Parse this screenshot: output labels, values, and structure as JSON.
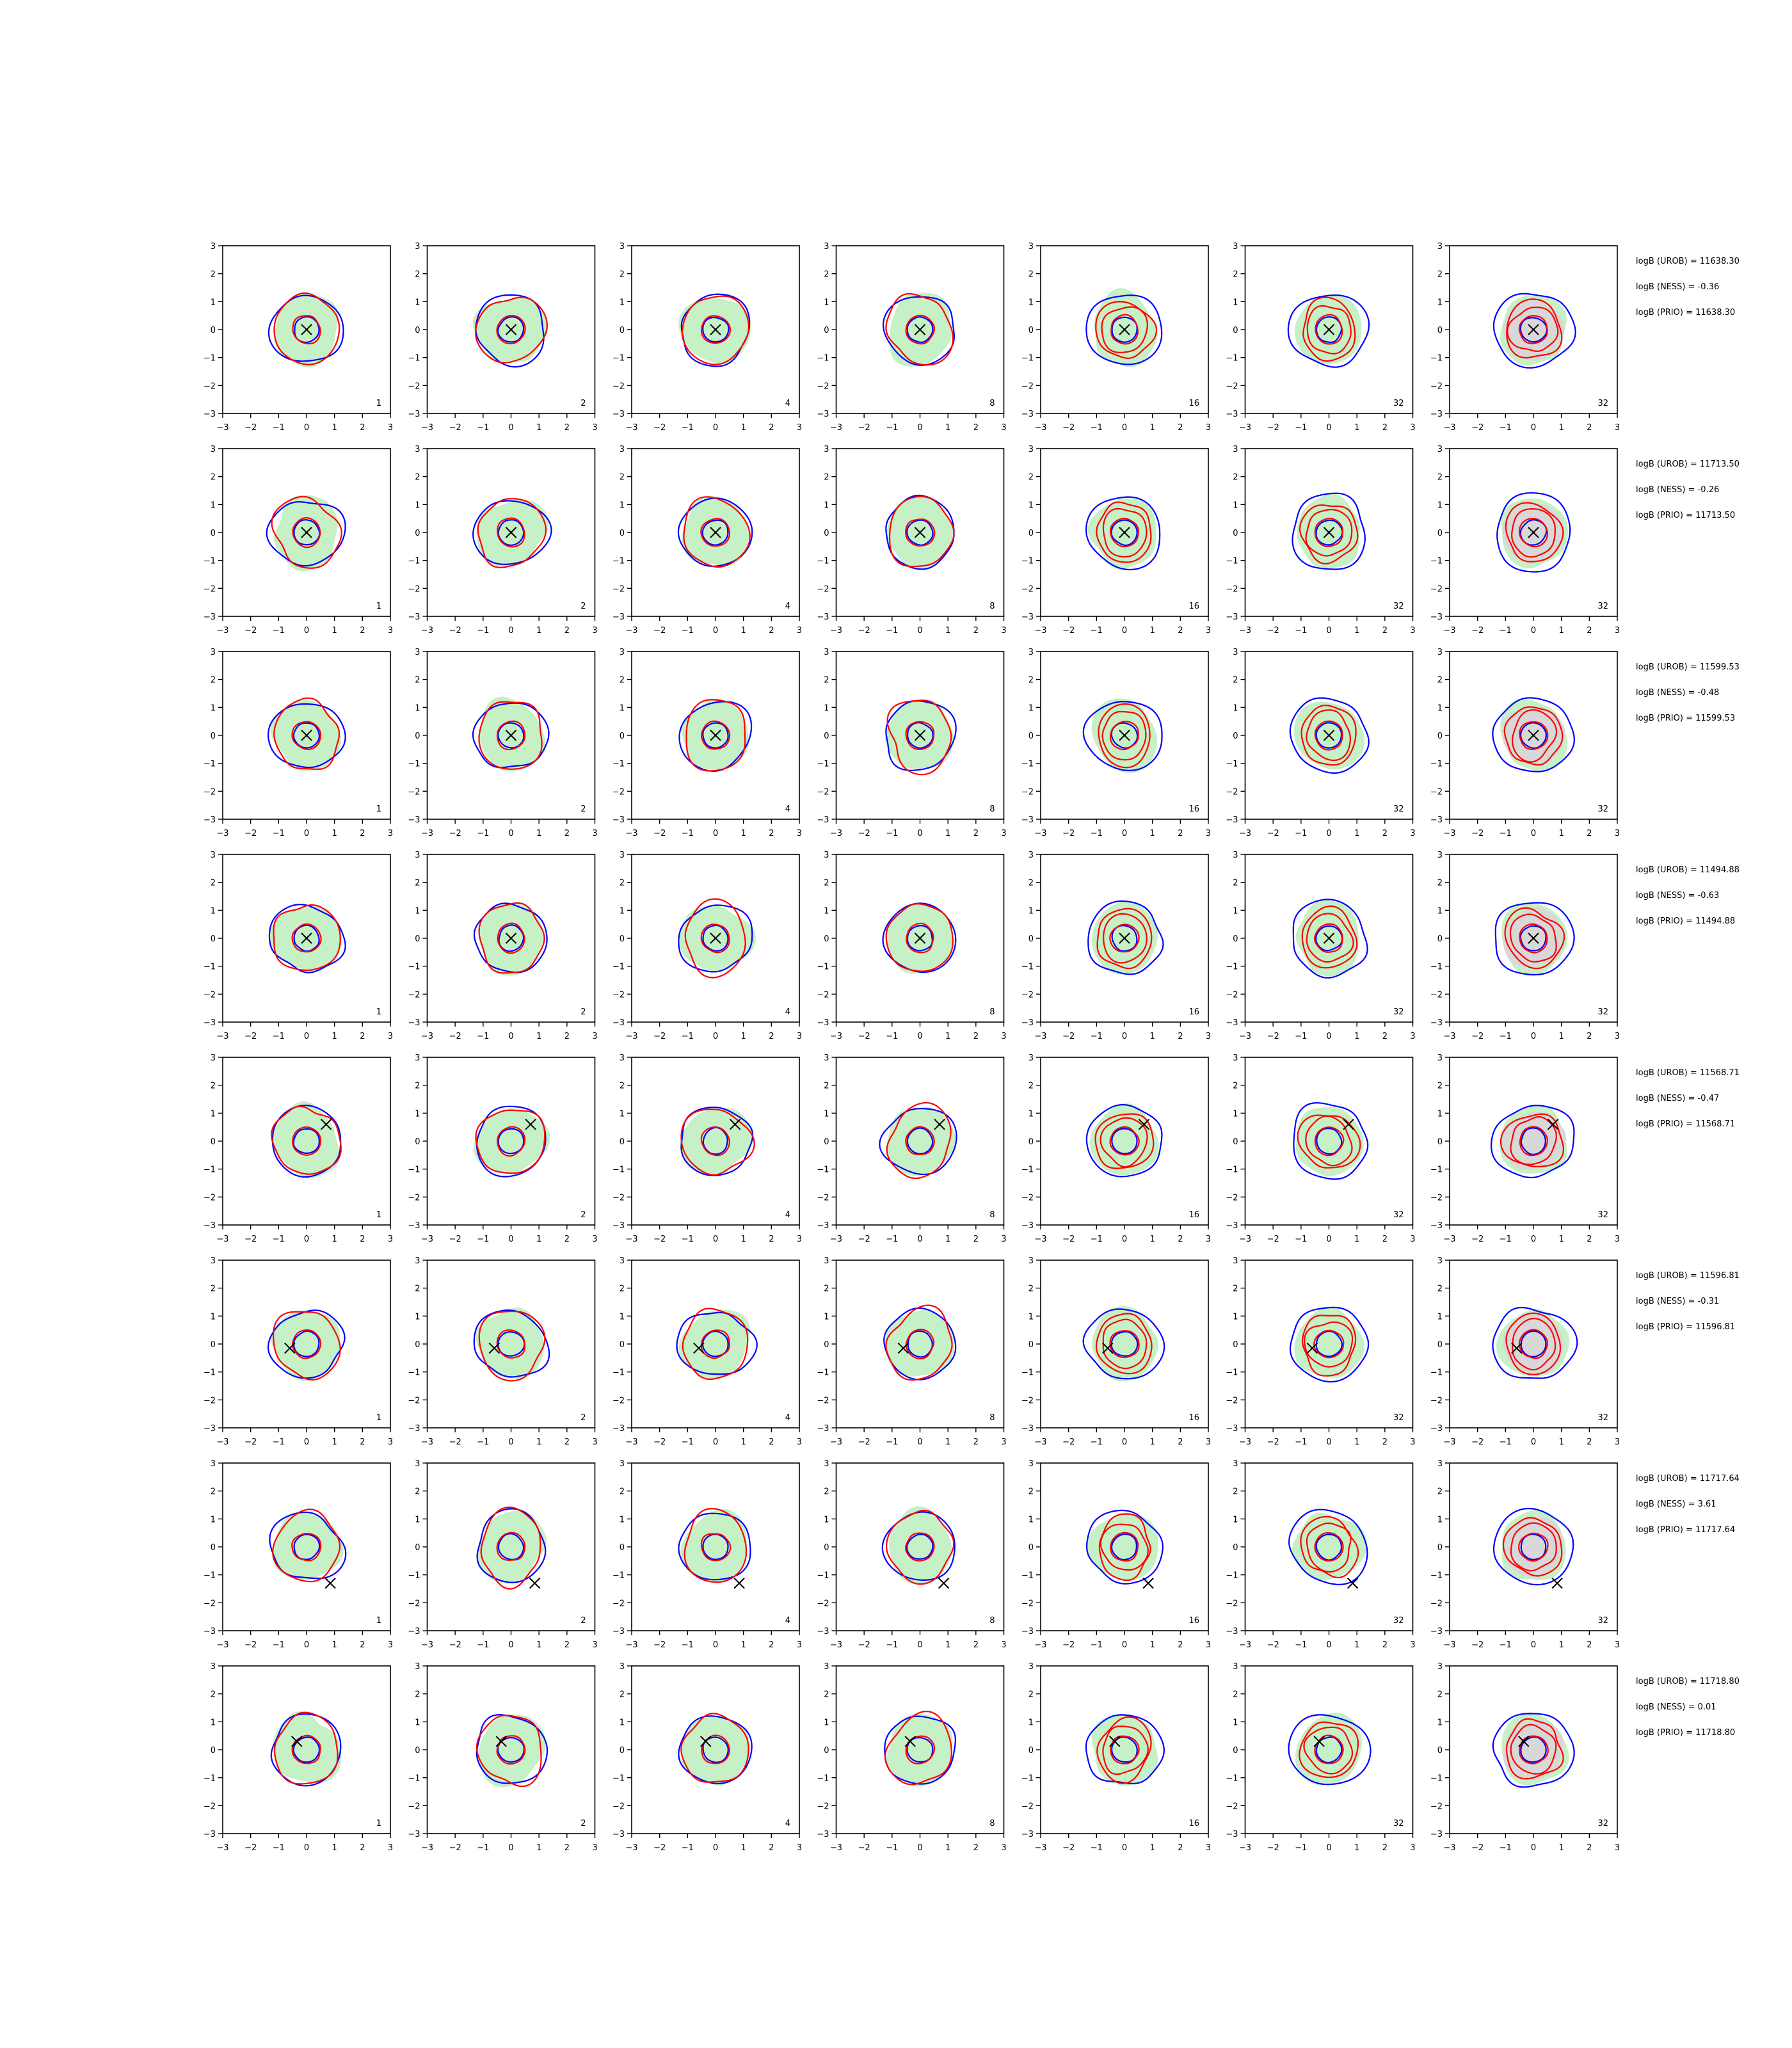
{
  "chart_data": {
    "type": "contour-grid",
    "layout": {
      "rows": 8,
      "cols": 7
    },
    "xlim": [
      -3,
      3
    ],
    "ylim": [
      -3,
      3
    ],
    "xticks": [
      "−3",
      "−2",
      "−1",
      "0",
      "1",
      "2",
      "3"
    ],
    "yticks": [
      "3",
      "2",
      "1",
      "0",
      "−1",
      "−2",
      "−3"
    ],
    "grid": false,
    "column_labels": [
      "1",
      "2",
      "4",
      "8",
      "16",
      "32",
      "32"
    ],
    "colors": {
      "reference_fill": "#c6f0c6",
      "prior_fill": "#d8d8d8",
      "blue_contour": "#0000ff",
      "red_contour": "#ff0000",
      "marker": "#000000"
    },
    "rows": [
      {
        "marker": [
          0.0,
          0.0
        ],
        "annotations": [
          "logB (UROB) = 11638.30",
          "logB (NESS) = -0.36",
          "logB (PRIO) = 11638.30"
        ]
      },
      {
        "marker": [
          0.0,
          0.0
        ],
        "annotations": [
          "logB (UROB) = 11713.50",
          "logB (NESS) = -0.26",
          "logB (PRIO) = 11713.50"
        ]
      },
      {
        "marker": [
          0.0,
          0.0
        ],
        "annotations": [
          "logB (UROB) = 11599.53",
          "logB (NESS) = -0.48",
          "logB (PRIO) = 11599.53"
        ]
      },
      {
        "marker": [
          0.0,
          0.0
        ],
        "annotations": [
          "logB (UROB) = 11494.88",
          "logB (NESS) = -0.63",
          "logB (PRIO) = 11494.88"
        ]
      },
      {
        "marker": [
          0.7,
          0.6
        ],
        "annotations": [
          "logB (UROB) = 11568.71",
          "logB (NESS) = -0.47",
          "logB (PRIO) = 11568.71"
        ]
      },
      {
        "marker": [
          -0.6,
          -0.15
        ],
        "annotations": [
          "logB (UROB) = 11596.81",
          "logB (NESS) = -0.31",
          "logB (PRIO) = 11596.81"
        ]
      },
      {
        "marker": [
          0.85,
          -1.3
        ],
        "annotations": [
          "logB (UROB) = 11717.64",
          "logB (NESS) = 3.61",
          "logB (PRIO) = 11717.64"
        ]
      },
      {
        "marker": [
          -0.35,
          0.3
        ],
        "annotations": [
          "logB (UROB) = 11718.80",
          "logB (NESS) = 0.01",
          "logB (PRIO) = 11718.80"
        ]
      }
    ]
  }
}
